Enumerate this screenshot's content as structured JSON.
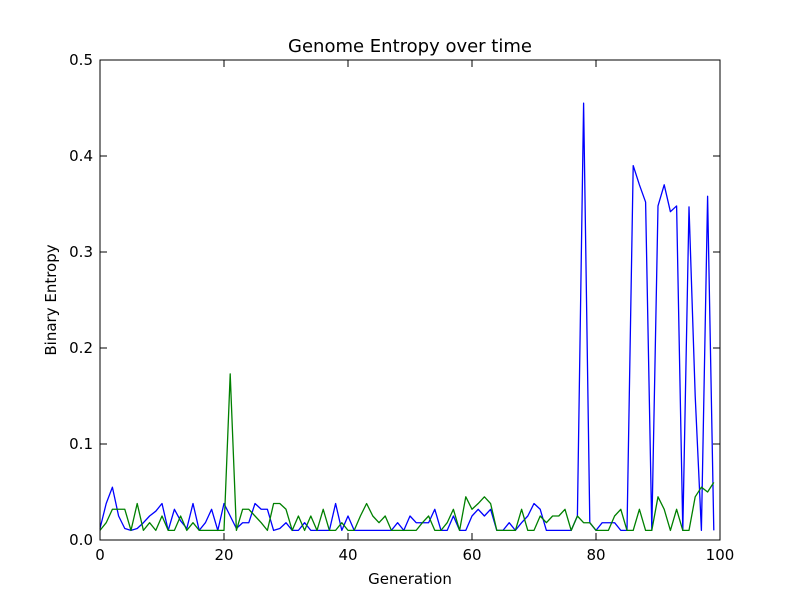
{
  "chart_data": {
    "type": "line",
    "title": "Genome Entropy over time",
    "xlabel": "Generation",
    "ylabel": "Binary Entropy",
    "xlim": [
      0,
      100
    ],
    "ylim": [
      0,
      0.5
    ],
    "xticks": [
      0,
      20,
      40,
      60,
      80,
      100
    ],
    "xtick_labels": [
      "0",
      "20",
      "40",
      "60",
      "80",
      "100"
    ],
    "yticks": [
      0.0,
      0.1,
      0.2,
      0.3,
      0.4,
      0.5
    ],
    "ytick_labels": [
      "0.0",
      "0.1",
      "0.2",
      "0.3",
      "0.4",
      "0.5"
    ],
    "grid": false,
    "legend": false,
    "x": [
      0,
      1,
      2,
      3,
      4,
      5,
      6,
      7,
      8,
      9,
      10,
      11,
      12,
      13,
      14,
      15,
      16,
      17,
      18,
      19,
      20,
      21,
      22,
      23,
      24,
      25,
      26,
      27,
      28,
      29,
      30,
      31,
      32,
      33,
      34,
      35,
      36,
      37,
      38,
      39,
      40,
      41,
      42,
      43,
      44,
      45,
      46,
      47,
      48,
      49,
      50,
      51,
      52,
      53,
      54,
      55,
      56,
      57,
      58,
      59,
      60,
      61,
      62,
      63,
      64,
      65,
      66,
      67,
      68,
      69,
      70,
      71,
      72,
      73,
      74,
      75,
      76,
      77,
      78,
      79,
      80,
      81,
      82,
      83,
      84,
      85,
      86,
      87,
      88,
      89,
      90,
      91,
      92,
      93,
      94,
      95,
      96,
      97,
      98,
      99
    ],
    "series": [
      {
        "color": "#0000ff",
        "values": [
          0.012,
          0.038,
          0.055,
          0.025,
          0.012,
          0.01,
          0.012,
          0.018,
          0.025,
          0.03,
          0.038,
          0.01,
          0.032,
          0.02,
          0.012,
          0.038,
          0.01,
          0.018,
          0.032,
          0.01,
          0.038,
          0.025,
          0.012,
          0.018,
          0.018,
          0.038,
          0.032,
          0.032,
          0.01,
          0.012,
          0.018,
          0.01,
          0.01,
          0.018,
          0.01,
          0.01,
          0.01,
          0.01,
          0.038,
          0.01,
          0.025,
          0.01,
          0.01,
          0.01,
          0.01,
          0.01,
          0.01,
          0.01,
          0.018,
          0.01,
          0.025,
          0.018,
          0.018,
          0.018,
          0.032,
          0.01,
          0.01,
          0.025,
          0.01,
          0.01,
          0.025,
          0.032,
          0.025,
          0.032,
          0.01,
          0.01,
          0.018,
          0.01,
          0.018,
          0.025,
          0.038,
          0.032,
          0.01,
          0.01,
          0.01,
          0.01,
          0.01,
          0.025,
          0.455,
          0.018,
          0.01,
          0.018,
          0.018,
          0.018,
          0.01,
          0.01,
          0.39,
          0.37,
          0.352,
          0.01,
          0.348,
          0.37,
          0.342,
          0.348,
          0.01,
          0.347,
          0.15,
          0.01,
          0.358,
          0.01
        ]
      },
      {
        "color": "#008000",
        "values": [
          0.01,
          0.018,
          0.032,
          0.032,
          0.032,
          0.01,
          0.038,
          0.01,
          0.018,
          0.01,
          0.025,
          0.01,
          0.01,
          0.025,
          0.01,
          0.018,
          0.01,
          0.01,
          0.01,
          0.01,
          0.01,
          0.173,
          0.01,
          0.032,
          0.032,
          0.025,
          0.018,
          0.01,
          0.038,
          0.038,
          0.032,
          0.01,
          0.025,
          0.01,
          0.025,
          0.01,
          0.032,
          0.01,
          0.01,
          0.018,
          0.01,
          0.01,
          0.025,
          0.038,
          0.025,
          0.018,
          0.025,
          0.01,
          0.01,
          0.01,
          0.01,
          0.01,
          0.018,
          0.025,
          0.01,
          0.01,
          0.018,
          0.032,
          0.01,
          0.045,
          0.032,
          0.038,
          0.045,
          0.038,
          0.01,
          0.01,
          0.01,
          0.01,
          0.032,
          0.01,
          0.01,
          0.025,
          0.018,
          0.025,
          0.025,
          0.032,
          0.01,
          0.025,
          0.018,
          0.018,
          0.01,
          0.01,
          0.01,
          0.025,
          0.032,
          0.01,
          0.01,
          0.032,
          0.01,
          0.01,
          0.045,
          0.032,
          0.01,
          0.032,
          0.01,
          0.01,
          0.045,
          0.055,
          0.05,
          0.06
        ]
      }
    ]
  }
}
